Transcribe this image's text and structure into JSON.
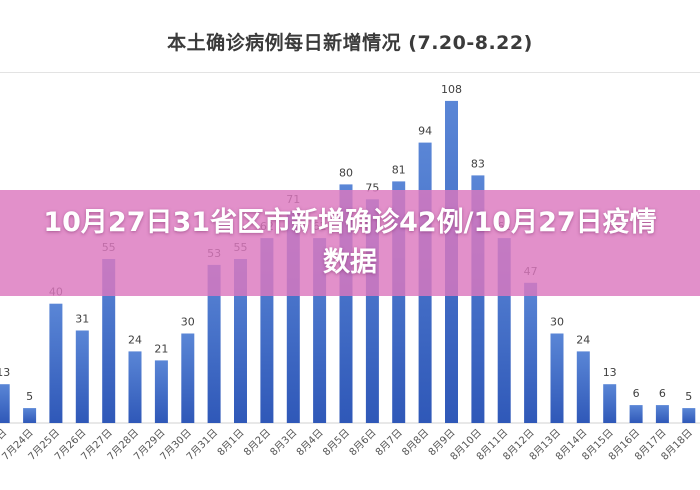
{
  "banner": {
    "headline": "10月27日31省区市新增确诊42例/10月27日疫情数据"
  },
  "colors": {
    "bar_top": "#5a86d6",
    "bar_bottom": "#2f58b8",
    "label": "#404040",
    "axis": "#d0d0d0",
    "banner": "#dc78be"
  },
  "chart_data": {
    "type": "bar",
    "title": "本土确诊病例每日新增情况 (7.20-8.22)",
    "xlabel": "",
    "ylabel": "",
    "ylim": [
      0,
      115
    ],
    "grid": false,
    "categories": [
      "7月23日",
      "7月24日",
      "7月25日",
      "7月26日",
      "7月27日",
      "7月28日",
      "7月29日",
      "7月30日",
      "7月31日",
      "8月1日",
      "8月2日",
      "8月3日",
      "8月4日",
      "8月5日",
      "8月6日",
      "8月7日",
      "8月8日",
      "8月9日",
      "8月10日",
      "8月11日",
      "8月12日",
      "8月13日",
      "8月14日",
      "8月15日",
      "8月16日",
      "8月17日",
      "8月18日"
    ],
    "values": [
      13,
      5,
      40,
      31,
      55,
      24,
      21,
      30,
      53,
      55,
      62,
      71,
      62,
      80,
      75,
      81,
      94,
      108,
      83,
      62,
      47,
      30,
      24,
      13,
      6,
      6,
      5
    ]
  }
}
